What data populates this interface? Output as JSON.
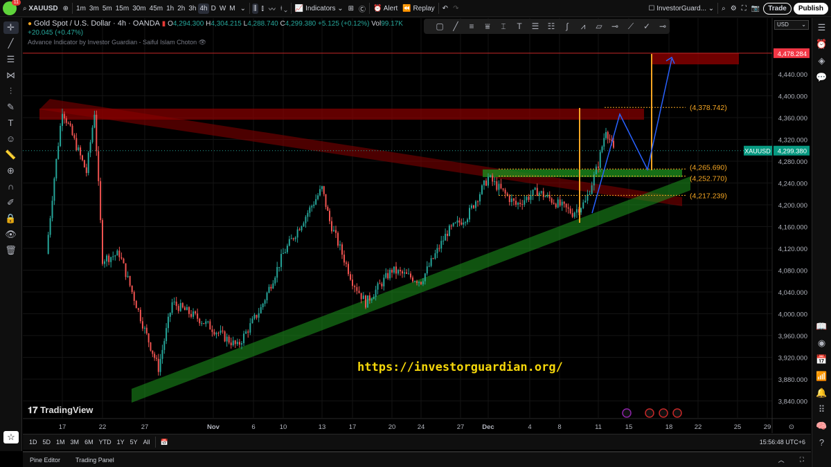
{
  "header": {
    "notif_count": "11",
    "symbol": "XAUUSD",
    "intervals": [
      "1m",
      "3m",
      "5m",
      "15m",
      "30m",
      "45m",
      "1h",
      "2h",
      "3h",
      "4h",
      "D",
      "W",
      "M"
    ],
    "active_interval": "4h",
    "indicators": "Indicators",
    "alert": "Alert",
    "replay": "Replay",
    "layout_name": "InvestorGuard...",
    "trade": "Trade",
    "publish": "Publish"
  },
  "legend": {
    "title": "Gold Spot / U.S. Dollar · 4h · OANDA",
    "o_label": "O",
    "o": "4,294.300",
    "h_label": "H",
    "h": "4,304.215",
    "l_label": "L",
    "l": "4,288.740",
    "c_label": "C",
    "c": "4,299.380",
    "change": "+5.125 (+0.12%)",
    "vol_label": "Vol",
    "vol": "99.17K",
    "vol_change": "+20.045 (+0.47%)",
    "indicator": "Advance Indicator by Investor Guardian - Saiful Islam Choton"
  },
  "currency": "USD",
  "watermark": "https://investorguardian.org/",
  "brand": "TradingView",
  "range_buttons": [
    "1D",
    "5D",
    "1M",
    "3M",
    "6M",
    "YTD",
    "1Y",
    "5Y",
    "All"
  ],
  "clock": "15:56:48 UTC+6",
  "bottom_tabs": [
    "Pine Editor",
    "Trading Panel"
  ],
  "colors": {
    "up": "#26a69a",
    "down": "#ef5350",
    "accent_orange": "#f5a623",
    "zone_red": "#8b0000",
    "zone_green": "#1b8a1b",
    "path_blue": "#2962ff"
  },
  "chart_data": {
    "type": "candlestick",
    "symbol_tag": "XAUUSD",
    "last_price": 4299.38,
    "last_price_label": "4,299.380",
    "target_price": 4478.284,
    "target_label": "4,478.284",
    "ylim": [
      3820,
      4500
    ],
    "y_ticks": [
      "3,840.000",
      "3,880.000",
      "3,920.000",
      "3,960.000",
      "4,000.000",
      "4,040.000",
      "4,080.000",
      "4,120.000",
      "4,160.000",
      "4,200.000",
      "4,240.000",
      "4,280.000",
      "4,320.000",
      "4,360.000",
      "4,400.000",
      "4,440.000"
    ],
    "x_ticks": [
      "17",
      "22",
      "27",
      "Nov",
      "6",
      "10",
      "13",
      "17",
      "20",
      "24",
      "27",
      "Dec",
      "4",
      "8",
      "11",
      "15",
      "18",
      "22",
      "25",
      "29"
    ],
    "levels": [
      {
        "price": 4378.742,
        "label": "(4,378.742)"
      },
      {
        "price": 4265.69,
        "label": "(4,265.690)"
      },
      {
        "price": 4252.77,
        "label": "(4,252.770)"
      },
      {
        "price": 4217.239,
        "label": "(4,217.239)"
      }
    ],
    "price_path": [
      [
        "2025-10-15",
        4110
      ],
      [
        "2025-10-16",
        4250
      ],
      [
        "2025-10-17",
        4375
      ],
      [
        "2025-10-20",
        4260
      ],
      [
        "2025-10-21",
        4370
      ],
      [
        "2025-10-22",
        4100
      ],
      [
        "2025-10-24",
        4110
      ],
      [
        "2025-10-27",
        3970
      ],
      [
        "2025-10-28",
        3900
      ],
      [
        "2025-10-29",
        4020
      ],
      [
        "2025-10-31",
        3990
      ],
      [
        "2025-11-04",
        3940
      ],
      [
        "2025-11-07",
        4010
      ],
      [
        "2025-11-10",
        4110
      ],
      [
        "2025-11-13",
        4230
      ],
      [
        "2025-11-14",
        4170
      ],
      [
        "2025-11-17",
        4060
      ],
      [
        "2025-11-18",
        4020
      ],
      [
        "2025-11-20",
        4080
      ],
      [
        "2025-11-24",
        4060
      ],
      [
        "2025-11-26",
        4150
      ],
      [
        "2025-11-28",
        4180
      ],
      [
        "2025-12-01",
        4250
      ],
      [
        "2025-12-03",
        4200
      ],
      [
        "2025-12-05",
        4225
      ],
      [
        "2025-12-09",
        4185
      ],
      [
        "2025-12-10",
        4205
      ],
      [
        "2025-12-11",
        4275
      ],
      [
        "2025-12-12",
        4340
      ],
      [
        "2025-12-13",
        4299.38
      ]
    ]
  }
}
